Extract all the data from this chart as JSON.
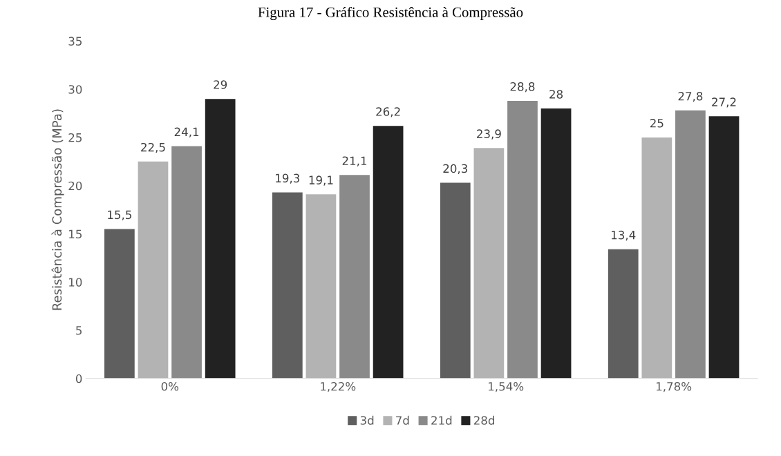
{
  "chart_data": {
    "type": "bar",
    "title": "Figura 17 - Gráfico Resistência à Compressão",
    "ylabel": "Resistência à Compressão (MPa)",
    "categories": [
      "0%",
      "1,22%",
      "1,54%",
      "1,78%"
    ],
    "series": [
      {
        "name": "3d",
        "color": "#5f5f5f",
        "values": [
          15.5,
          19.3,
          20.3,
          13.4
        ],
        "value_labels": [
          "15,5",
          "19,3",
          "20,3",
          "13,4"
        ]
      },
      {
        "name": "7d",
        "color": "#b3b3b3",
        "values": [
          22.5,
          19.1,
          23.9,
          25
        ],
        "value_labels": [
          "22,5",
          "19,1",
          "23,9",
          "25"
        ]
      },
      {
        "name": "21d",
        "color": "#8a8a8a",
        "values": [
          24.1,
          21.1,
          28.8,
          27.8
        ],
        "value_labels": [
          "24,1",
          "21,1",
          "28,8",
          "27,8"
        ]
      },
      {
        "name": "28d",
        "color": "#222222",
        "values": [
          29,
          26.2,
          28,
          27.2
        ],
        "value_labels": [
          "29",
          "26,2",
          "28",
          "27,2"
        ]
      }
    ],
    "ylim": [
      0,
      35
    ],
    "yticks": [
      0,
      5,
      10,
      15,
      20,
      25,
      30,
      35
    ],
    "grid": false,
    "legend": "bottom"
  }
}
